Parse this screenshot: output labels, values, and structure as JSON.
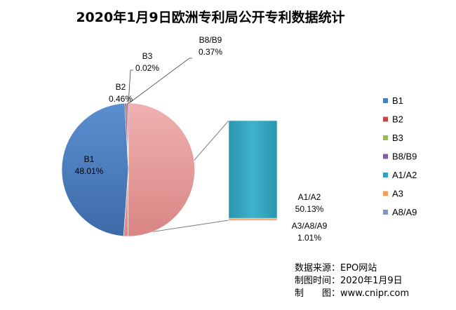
{
  "title": "2020年1月9日欧洲专利局公开专利数据统计",
  "chart_data": [
    {
      "type": "pie",
      "labels": [
        "B1",
        "B2",
        "B3",
        "B8/B9",
        "A1/A2",
        "A3/A8/A9"
      ],
      "values": [
        48.01,
        0.46,
        0.02,
        0.37,
        50.13,
        1.01
      ],
      "unit": "%",
      "data_labels": [
        {
          "name": "B1",
          "value": "48.01%"
        },
        {
          "name": "B2",
          "value": "0.46%"
        },
        {
          "name": "B3",
          "value": "0.02%"
        },
        {
          "name": "B8/B9",
          "value": "0.37%"
        },
        {
          "name": "A1/A2",
          "value": "50.13%"
        },
        {
          "name": "A3/A8/A9",
          "value": "1.01%"
        }
      ],
      "colors": {
        "B1": "#4a7ebb",
        "B2": "#be4b48",
        "B3": "#98b954",
        "B8/B9": "#7d60a0",
        "A1/A2": "#e89c9b",
        "A3/A8/A9": "#e89c9b"
      }
    },
    {
      "type": "bar",
      "stacked": true,
      "categories": [
        "A1/A2",
        "A3",
        "A8/A9"
      ],
      "values": [
        50.13,
        0.98,
        0.03
      ],
      "colors": {
        "A1/A2": "#33a3bd",
        "A3": "#f59d56",
        "A8/A9": "#7f96c4"
      }
    }
  ],
  "legend": {
    "position": "right",
    "items": [
      {
        "label": "B1",
        "color": "#4a7ebb"
      },
      {
        "label": "B2",
        "color": "#be4b48"
      },
      {
        "label": "B3",
        "color": "#98b954"
      },
      {
        "label": "B8/B9",
        "color": "#7d60a0"
      },
      {
        "label": "A1/A2",
        "color": "#33a3bd"
      },
      {
        "label": "A3",
        "color": "#f59d56"
      },
      {
        "label": "A8/A9",
        "color": "#7f96c4"
      }
    ]
  },
  "source": {
    "line1": "数据来源：EPO网站",
    "line2": "制图时间：2020年1月9日",
    "line3": "制　　图：www.cnipr.com"
  }
}
